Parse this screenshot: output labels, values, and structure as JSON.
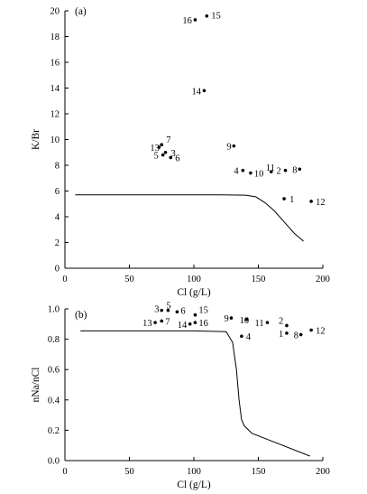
{
  "chart_data": [
    {
      "type": "scatter",
      "panel_label": "(a)",
      "xlabel": "Cl (g/L)",
      "ylabel": "K/Br",
      "xlim": [
        0,
        200
      ],
      "ylim": [
        0,
        20
      ],
      "x_ticks": [
        0,
        50,
        100,
        150,
        200
      ],
      "x_tick_labels": [
        "0",
        "50",
        "100",
        "150",
        "200"
      ],
      "y_ticks": [
        0,
        2,
        4,
        6,
        8,
        10,
        12,
        14,
        16,
        18,
        20
      ],
      "y_tick_labels": [
        "0",
        "2",
        "4",
        "6",
        "8",
        "10",
        "12",
        "14",
        "16",
        "18",
        "20"
      ],
      "points": [
        {
          "label": "1",
          "x": 170,
          "y": 5.4
        },
        {
          "label": "2",
          "x": 171,
          "y": 7.6
        },
        {
          "label": "3",
          "x": 78,
          "y": 9.0
        },
        {
          "label": "4",
          "x": 138,
          "y": 7.6
        },
        {
          "label": "5",
          "x": 76,
          "y": 8.8
        },
        {
          "label": "6",
          "x": 82,
          "y": 8.6
        },
        {
          "label": "7",
          "x": 75,
          "y": 9.6
        },
        {
          "label": "8",
          "x": 182,
          "y": 7.7
        },
        {
          "label": "9",
          "x": 131,
          "y": 9.5
        },
        {
          "label": "10",
          "x": 144,
          "y": 7.4
        },
        {
          "label": "11",
          "x": 160,
          "y": 7.5
        },
        {
          "label": "12",
          "x": 191,
          "y": 5.2
        },
        {
          "label": "13",
          "x": 73,
          "y": 9.4
        },
        {
          "label": "14",
          "x": 108,
          "y": 13.8
        },
        {
          "label": "15",
          "x": 110,
          "y": 19.6
        },
        {
          "label": "16",
          "x": 101,
          "y": 19.3
        }
      ],
      "curve": {
        "x": [
          8,
          30,
          60,
          90,
          120,
          140,
          148,
          155,
          162,
          170,
          178,
          185
        ],
        "y": [
          5.7,
          5.7,
          5.7,
          5.7,
          5.7,
          5.68,
          5.55,
          5.1,
          4.5,
          3.6,
          2.7,
          2.1
        ]
      }
    },
    {
      "type": "scatter",
      "panel_label": "(b)",
      "xlabel": "Cl (g/L)",
      "ylabel": "nNa/nCl",
      "xlim": [
        0,
        200
      ],
      "ylim": [
        0,
        1.0
      ],
      "x_ticks": [
        0,
        50,
        100,
        150,
        200
      ],
      "x_tick_labels": [
        "0",
        "50",
        "100",
        "150",
        "200"
      ],
      "y_ticks": [
        0,
        0.2,
        0.4,
        0.6,
        0.8,
        1.0
      ],
      "y_tick_labels": [
        "0.0",
        "0.2",
        "0.4",
        "0.6",
        "0.8",
        "1.0"
      ],
      "points": [
        {
          "label": "1",
          "x": 172,
          "y": 0.84
        },
        {
          "label": "2",
          "x": 172,
          "y": 0.89
        },
        {
          "label": "3",
          "x": 75,
          "y": 0.99
        },
        {
          "label": "4",
          "x": 137,
          "y": 0.82
        },
        {
          "label": "5",
          "x": 80,
          "y": 0.99
        },
        {
          "label": "6",
          "x": 87,
          "y": 0.98
        },
        {
          "label": "7",
          "x": 75,
          "y": 0.92
        },
        {
          "label": "8",
          "x": 183,
          "y": 0.83
        },
        {
          "label": "9",
          "x": 129,
          "y": 0.94
        },
        {
          "label": "10",
          "x": 141,
          "y": 0.93
        },
        {
          "label": "11",
          "x": 157,
          "y": 0.91
        },
        {
          "label": "12",
          "x": 191,
          "y": 0.86
        },
        {
          "label": "13",
          "x": 70,
          "y": 0.91
        },
        {
          "label": "14",
          "x": 97,
          "y": 0.9
        },
        {
          "label": "15",
          "x": 101,
          "y": 0.96
        },
        {
          "label": "16",
          "x": 101,
          "y": 0.91
        }
      ],
      "curve": {
        "x": [
          12,
          50,
          100,
          125,
          130,
          133,
          135,
          137,
          139,
          145,
          160,
          190
        ],
        "y": [
          0.855,
          0.855,
          0.855,
          0.85,
          0.78,
          0.6,
          0.4,
          0.27,
          0.23,
          0.18,
          0.13,
          0.03
        ]
      }
    }
  ]
}
